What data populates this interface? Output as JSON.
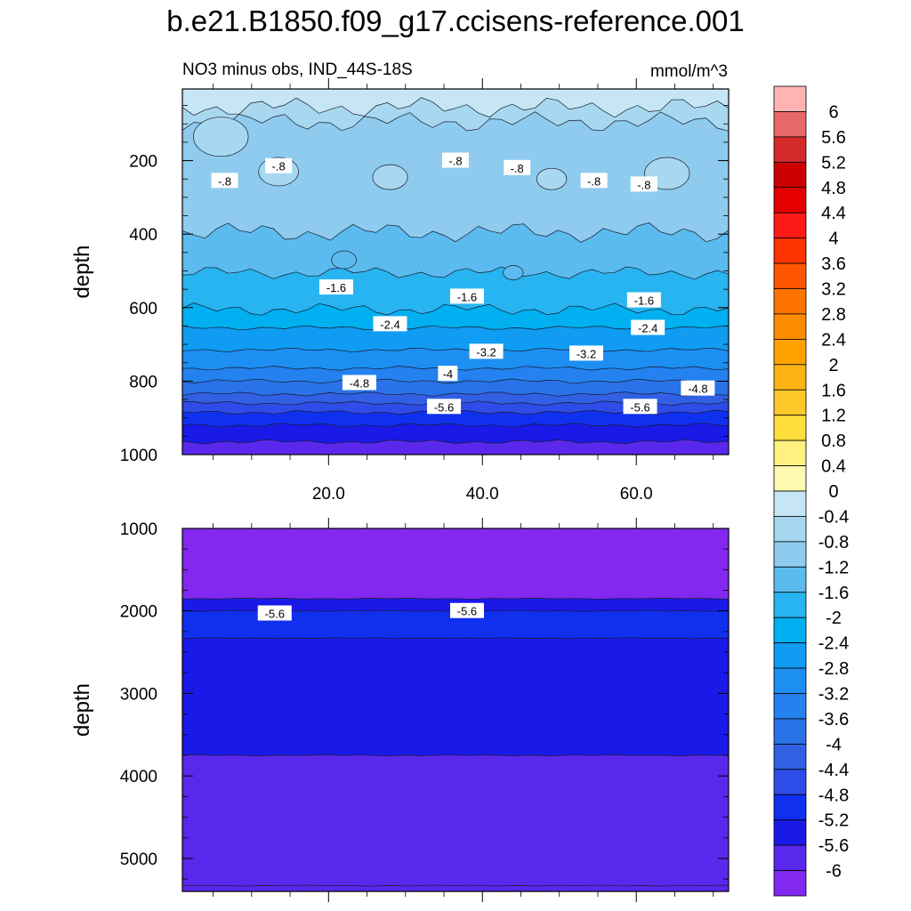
{
  "title": "b.e21.B1850.f09_g17.ccisens-reference.001",
  "subtitle_left": "NO3 minus obs, IND_44S-18S",
  "subtitle_right": "mmol/m^3",
  "chart_data": [
    {
      "type": "contour",
      "panel": "upper",
      "ylabel": "depth",
      "xlim": [
        1,
        72
      ],
      "ylim": [
        1000,
        5
      ],
      "y_inverted": true,
      "xticks": [
        20,
        40,
        60
      ],
      "xtick_labels": [
        "20.0",
        "40.0",
        "60.0"
      ],
      "yticks": [
        200,
        400,
        600,
        800,
        1000
      ],
      "ytick_labels": [
        "200",
        "400",
        "600",
        "800",
        "1000"
      ],
      "band_boundaries_depth": [
        {
          "level": -0.4,
          "depth": 55
        },
        {
          "level": -0.8,
          "depth": 95
        },
        {
          "level": -1.2,
          "depth": 395
        },
        {
          "level": -1.6,
          "depth": 505
        },
        {
          "level": -2.0,
          "depth": 605
        },
        {
          "level": -2.4,
          "depth": 655
        },
        {
          "level": -2.8,
          "depth": 715
        },
        {
          "level": -3.2,
          "depth": 765
        },
        {
          "level": -3.6,
          "depth": 800
        },
        {
          "level": -4.0,
          "depth": 835
        },
        {
          "level": -4.4,
          "depth": 860
        },
        {
          "level": -4.8,
          "depth": 885
        },
        {
          "level": -5.2,
          "depth": 920
        },
        {
          "level": -5.6,
          "depth": 965
        }
      ],
      "contour_labels": [
        {
          "text": "-.8",
          "x": 6.5,
          "y": 255
        },
        {
          "text": "-.8",
          "x": 13.5,
          "y": 215
        },
        {
          "text": "-.8",
          "x": 36.5,
          "y": 200
        },
        {
          "text": "-.8",
          "x": 44.5,
          "y": 220
        },
        {
          "text": "-.8",
          "x": 54.5,
          "y": 255
        },
        {
          "text": "-.8",
          "x": 61,
          "y": 265
        },
        {
          "text": "-1.6",
          "x": 21,
          "y": 545
        },
        {
          "text": "-1.6",
          "x": 38,
          "y": 570
        },
        {
          "text": "-1.6",
          "x": 61,
          "y": 580
        },
        {
          "text": "-2.4",
          "x": 28,
          "y": 645
        },
        {
          "text": "-2.4",
          "x": 61.5,
          "y": 655
        },
        {
          "text": "-3.2",
          "x": 40.5,
          "y": 720
        },
        {
          "text": "-3.2",
          "x": 53.5,
          "y": 725
        },
        {
          "text": "-4",
          "x": 35.5,
          "y": 780
        },
        {
          "text": "-4.8",
          "x": 24,
          "y": 805
        },
        {
          "text": "-4.8",
          "x": 68,
          "y": 820
        },
        {
          "text": "-5.6",
          "x": 35,
          "y": 870
        },
        {
          "text": "-5.6",
          "x": 60.5,
          "y": 870
        }
      ]
    },
    {
      "type": "contour",
      "panel": "lower",
      "ylabel": "depth",
      "xlim": [
        1,
        72
      ],
      "ylim": [
        5400,
        1000
      ],
      "y_inverted": true,
      "yticks": [
        1000,
        2000,
        3000,
        4000,
        5000
      ],
      "ytick_labels": [
        "1000",
        "2000",
        "3000",
        "4000",
        "5000"
      ],
      "band_boundaries_depth": [
        {
          "level": -6.0,
          "depth": 1000
        },
        {
          "level": -5.6,
          "depth": 1850
        },
        {
          "level": -5.2,
          "depth": 2000
        },
        {
          "level": -4.8,
          "depth": 2330
        },
        {
          "level": -5.2,
          "depth": 3750
        },
        {
          "level": -5.6,
          "depth": 5330
        }
      ],
      "contour_labels": [
        {
          "text": "-5.6",
          "x": 13,
          "y": 2030
        },
        {
          "text": "-5.6",
          "x": 38,
          "y": 2000
        }
      ]
    }
  ],
  "colorbar": {
    "labels": [
      "6",
      "5.6",
      "5.2",
      "4.8",
      "4.4",
      "4",
      "3.6",
      "3.2",
      "2.8",
      "2.4",
      "2",
      "1.6",
      "1.2",
      "0.8",
      "0.4",
      "0",
      "-0.4",
      "-0.8",
      "-1.2",
      "-1.6",
      "-2",
      "-2.4",
      "-2.8",
      "-3.2",
      "-3.6",
      "-4",
      "-4.4",
      "-4.8",
      "-5.2",
      "-5.6",
      "-6"
    ],
    "colors": [
      "#ffb3b3",
      "#e96868",
      "#d62b2b",
      "#cc0000",
      "#e60000",
      "#ff1a1a",
      "#ff3300",
      "#ff5500",
      "#ff7400",
      "#ff8c00",
      "#ffa200",
      "#ffb414",
      "#ffc82a",
      "#ffde3c",
      "#fff080",
      "#fff8b0",
      "#c6e6f5",
      "#a8d8f0",
      "#8ecbef",
      "#5bbbee",
      "#28b4f0",
      "#00b0f0",
      "#0f9cf2",
      "#1d8ef2",
      "#2382ef",
      "#2a72e8",
      "#3160e4",
      "#2e4ce8",
      "#1030f0",
      "#1a1ae8",
      "#5a28ec",
      "#8228f0"
    ]
  }
}
